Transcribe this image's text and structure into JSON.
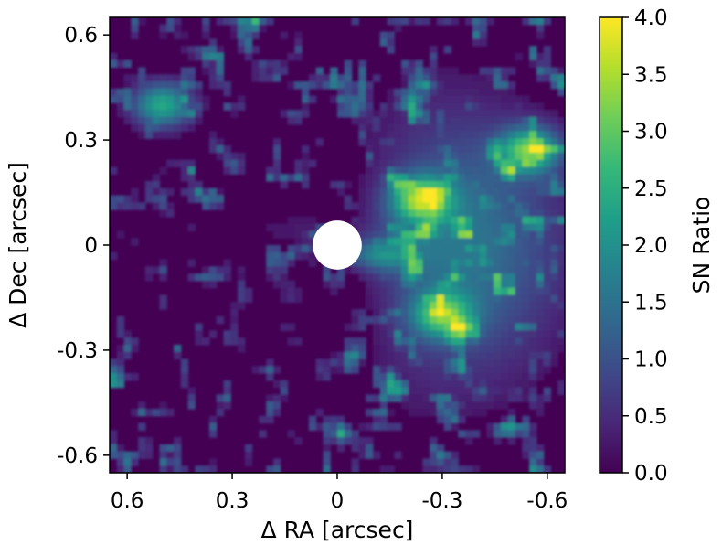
{
  "chart_data": {
    "type": "heatmap",
    "title": "",
    "xlabel": "Δ RA [arcsec]",
    "ylabel": "Δ Dec [arcsec]",
    "xlim": [
      0.65,
      -0.65
    ],
    "ylim": [
      -0.65,
      0.65
    ],
    "x_ticks": [
      0.6,
      0.3,
      0,
      -0.3,
      -0.6
    ],
    "x_tick_labels": [
      "0.6",
      "0.3",
      "0",
      "-0.3",
      "-0.6"
    ],
    "y_ticks": [
      0.6,
      0.3,
      0,
      -0.3,
      -0.6
    ],
    "y_tick_labels": [
      "0.6",
      "0.3",
      "0",
      "-0.3",
      "-0.6"
    ],
    "colormap": "viridis",
    "colorbar": {
      "label": "SN Ratio",
      "min": 0.0,
      "max": 4.0,
      "ticks": [
        0.0,
        0.5,
        1.0,
        1.5,
        2.0,
        2.5,
        3.0,
        3.5,
        4.0
      ],
      "tick_labels": [
        "0.0",
        "0.5",
        "1.0",
        "1.5",
        "2.0",
        "2.5",
        "3.0",
        "3.5",
        "4.0"
      ]
    },
    "mask": {
      "shape": "circle",
      "center": [
        0,
        0
      ],
      "radius_arcsec": 0.07,
      "color": "#ffffff"
    },
    "features": [
      {
        "name": "bright arc north-east",
        "ra": -0.24,
        "dec": 0.13,
        "sn": 3.4
      },
      {
        "name": "bright spot far east",
        "ra": -0.55,
        "dec": 0.27,
        "sn": 3.5
      },
      {
        "name": "southern-east ridge",
        "ra": -0.3,
        "dec": -0.2,
        "sn": 3.0
      },
      {
        "name": "north-west blob",
        "ra": 0.5,
        "dec": 0.4,
        "sn": 3.0
      }
    ]
  }
}
